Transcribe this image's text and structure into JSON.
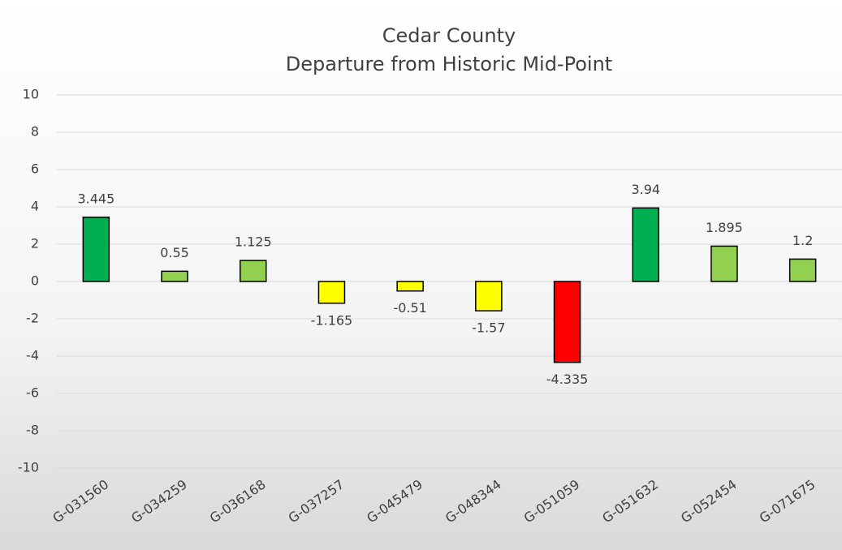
{
  "chart_data": {
    "type": "bar",
    "title": [
      "Cedar County",
      "Departure from Historic Mid-Point"
    ],
    "categories": [
      "G-031560",
      "G-034259",
      "G-036168",
      "G-037257",
      "G-045479",
      "G-048344",
      "G-051059",
      "G-051632",
      "G-052454",
      "G-071675"
    ],
    "values": [
      3.445,
      0.55,
      1.125,
      -1.165,
      -0.51,
      -1.57,
      -4.335,
      3.94,
      1.895,
      1.2
    ],
    "colors": [
      "#00b050",
      "#92d050",
      "#92d050",
      "#ffff00",
      "#ffff00",
      "#ffff00",
      "#ff0000",
      "#00b050",
      "#92d050",
      "#92d050"
    ],
    "ylim": [
      -10,
      10
    ],
    "yticks": [
      -10,
      -8,
      -6,
      -4,
      -2,
      0,
      2,
      4,
      6,
      8,
      10
    ],
    "grid": true
  }
}
